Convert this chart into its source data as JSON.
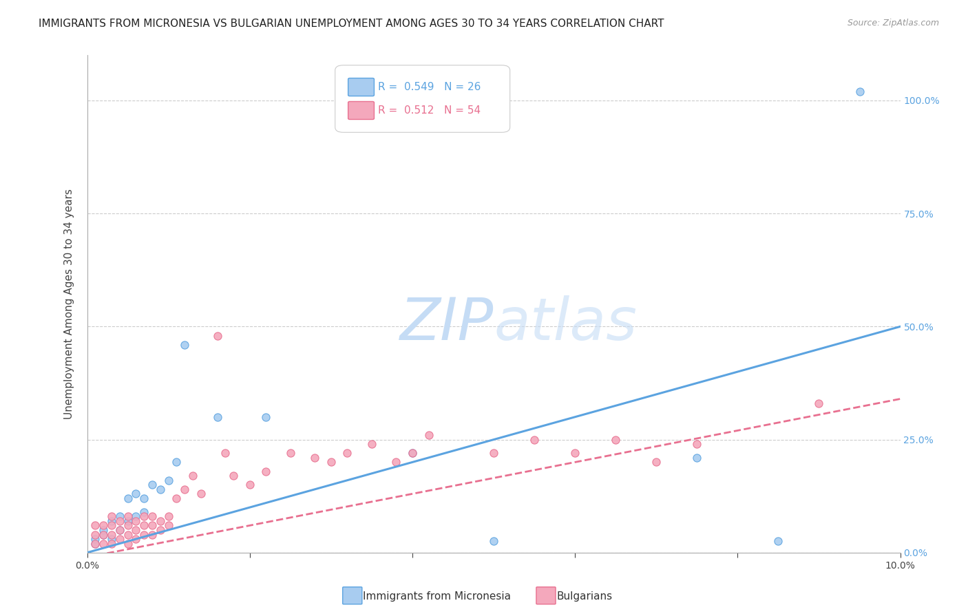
{
  "title": "IMMIGRANTS FROM MICRONESIA VS BULGARIAN UNEMPLOYMENT AMONG AGES 30 TO 34 YEARS CORRELATION CHART",
  "source": "Source: ZipAtlas.com",
  "ylabel": "Unemployment Among Ages 30 to 34 years",
  "xlabel_blue": "Immigrants from Micronesia",
  "xlabel_pink": "Bulgarians",
  "xlim": [
    0.0,
    0.1
  ],
  "ylim": [
    0.0,
    1.1
  ],
  "yticks": [
    0.0,
    0.25,
    0.5,
    0.75,
    1.0
  ],
  "ytick_labels": [
    "0.0%",
    "25.0%",
    "50.0%",
    "75.0%",
    "100.0%"
  ],
  "xticks": [
    0.0,
    0.02,
    0.04,
    0.06,
    0.08,
    0.1
  ],
  "xtick_labels": [
    "0.0%",
    "",
    "",
    "",
    "",
    "10.0%"
  ],
  "legend_blue_R": "0.549",
  "legend_blue_N": "26",
  "legend_pink_R": "0.512",
  "legend_pink_N": "54",
  "blue_color": "#A8CCF0",
  "pink_color": "#F4A8BC",
  "blue_line_color": "#5BA3E0",
  "pink_line_color": "#E87090",
  "watermark_color": "#DDEEFF",
  "blue_line_slope": 5.0,
  "blue_line_intercept": 0.0,
  "pink_line_slope": 3.5,
  "pink_line_intercept": -0.01,
  "blue_scatter_x": [
    0.001,
    0.001,
    0.002,
    0.002,
    0.003,
    0.003,
    0.004,
    0.004,
    0.005,
    0.005,
    0.006,
    0.006,
    0.007,
    0.007,
    0.008,
    0.009,
    0.01,
    0.011,
    0.012,
    0.016,
    0.022,
    0.04,
    0.05,
    0.075,
    0.085,
    0.095
  ],
  "blue_scatter_y": [
    0.02,
    0.03,
    0.04,
    0.05,
    0.03,
    0.07,
    0.05,
    0.08,
    0.07,
    0.12,
    0.08,
    0.13,
    0.09,
    0.12,
    0.15,
    0.14,
    0.16,
    0.2,
    0.46,
    0.3,
    0.3,
    0.22,
    0.025,
    0.21,
    0.025,
    1.02
  ],
  "pink_scatter_x": [
    0.001,
    0.001,
    0.001,
    0.002,
    0.002,
    0.002,
    0.003,
    0.003,
    0.003,
    0.003,
    0.004,
    0.004,
    0.004,
    0.005,
    0.005,
    0.005,
    0.005,
    0.006,
    0.006,
    0.006,
    0.007,
    0.007,
    0.007,
    0.008,
    0.008,
    0.008,
    0.009,
    0.009,
    0.01,
    0.01,
    0.011,
    0.012,
    0.013,
    0.014,
    0.016,
    0.017,
    0.018,
    0.02,
    0.022,
    0.025,
    0.028,
    0.03,
    0.032,
    0.035,
    0.038,
    0.04,
    0.042,
    0.05,
    0.055,
    0.06,
    0.065,
    0.07,
    0.075,
    0.09
  ],
  "pink_scatter_y": [
    0.02,
    0.04,
    0.06,
    0.02,
    0.04,
    0.06,
    0.02,
    0.04,
    0.06,
    0.08,
    0.03,
    0.05,
    0.07,
    0.02,
    0.04,
    0.06,
    0.08,
    0.03,
    0.05,
    0.07,
    0.04,
    0.06,
    0.08,
    0.04,
    0.06,
    0.08,
    0.05,
    0.07,
    0.06,
    0.08,
    0.12,
    0.14,
    0.17,
    0.13,
    0.48,
    0.22,
    0.17,
    0.15,
    0.18,
    0.22,
    0.21,
    0.2,
    0.22,
    0.24,
    0.2,
    0.22,
    0.26,
    0.22,
    0.25,
    0.22,
    0.25,
    0.2,
    0.24,
    0.33
  ],
  "title_fontsize": 11,
  "axis_label_fontsize": 11,
  "tick_fontsize": 10,
  "legend_fontsize": 11
}
